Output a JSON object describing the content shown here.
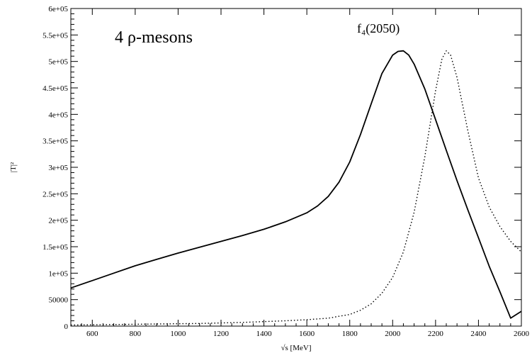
{
  "chart_data": {
    "type": "line",
    "xlabel": "√s  [MeV]",
    "ylabel": "|T|²",
    "xlim": [
      500,
      2600
    ],
    "ylim": [
      0,
      600000
    ],
    "x_ticks": [
      600,
      800,
      1000,
      1200,
      1400,
      1600,
      1800,
      2000,
      2200,
      2400,
      2600
    ],
    "y_ticks": [
      {
        "value": 0,
        "label": "0"
      },
      {
        "value": 50000,
        "label": "50000"
      },
      {
        "value": 100000,
        "label": "1e+05"
      },
      {
        "value": 150000,
        "label": "1.5e+05"
      },
      {
        "value": 200000,
        "label": "2e+05"
      },
      {
        "value": 250000,
        "label": "2.5e+05"
      },
      {
        "value": 300000,
        "label": "3e+05"
      },
      {
        "value": 350000,
        "label": "3.5e+05"
      },
      {
        "value": 400000,
        "label": "4e+05"
      },
      {
        "value": 450000,
        "label": "4.5e+05"
      },
      {
        "value": 500000,
        "label": "5e+05"
      },
      {
        "value": 550000,
        "label": "5.5e+05"
      },
      {
        "value": 600000,
        "label": "6e+05"
      }
    ],
    "annotations": [
      {
        "text": "4 ρ-mesons",
        "x": 700,
        "y": 540000
      },
      {
        "text": "f₄(2050)",
        "x": 2000,
        "y": 545000
      }
    ],
    "series": [
      {
        "style": "solid",
        "color": "#000000",
        "x": [
          500,
          600,
          700,
          800,
          900,
          1000,
          1100,
          1200,
          1300,
          1400,
          1500,
          1600,
          1650,
          1700,
          1750,
          1800,
          1850,
          1900,
          1950,
          2000,
          2025,
          2050,
          2075,
          2100,
          2150,
          2200,
          2250,
          2300,
          2350,
          2400,
          2450,
          2500,
          2550,
          2600
        ],
        "y": [
          72000,
          86000,
          100000,
          114000,
          126000,
          138000,
          149000,
          160000,
          171000,
          183000,
          197000,
          214000,
          227000,
          245000,
          272000,
          310000,
          362000,
          420000,
          477000,
          512000,
          519000,
          520000,
          512000,
          495000,
          448000,
          390000,
          332000,
          275000,
          220000,
          167000,
          113000,
          65000,
          15000,
          28000
        ]
      },
      {
        "style": "dotted",
        "color": "#000000",
        "x": [
          500,
          700,
          900,
          1100,
          1300,
          1500,
          1600,
          1700,
          1800,
          1850,
          1900,
          1950,
          2000,
          2050,
          2100,
          2150,
          2200,
          2230,
          2250,
          2270,
          2300,
          2350,
          2400,
          2450,
          2500,
          2550,
          2600
        ],
        "y": [
          2000,
          3000,
          4000,
          5000,
          7000,
          10000,
          12000,
          15000,
          22000,
          30000,
          42000,
          62000,
          92000,
          140000,
          215000,
          320000,
          445000,
          505000,
          520000,
          512000,
          470000,
          370000,
          280000,
          225000,
          188000,
          160000,
          140000
        ]
      }
    ]
  }
}
